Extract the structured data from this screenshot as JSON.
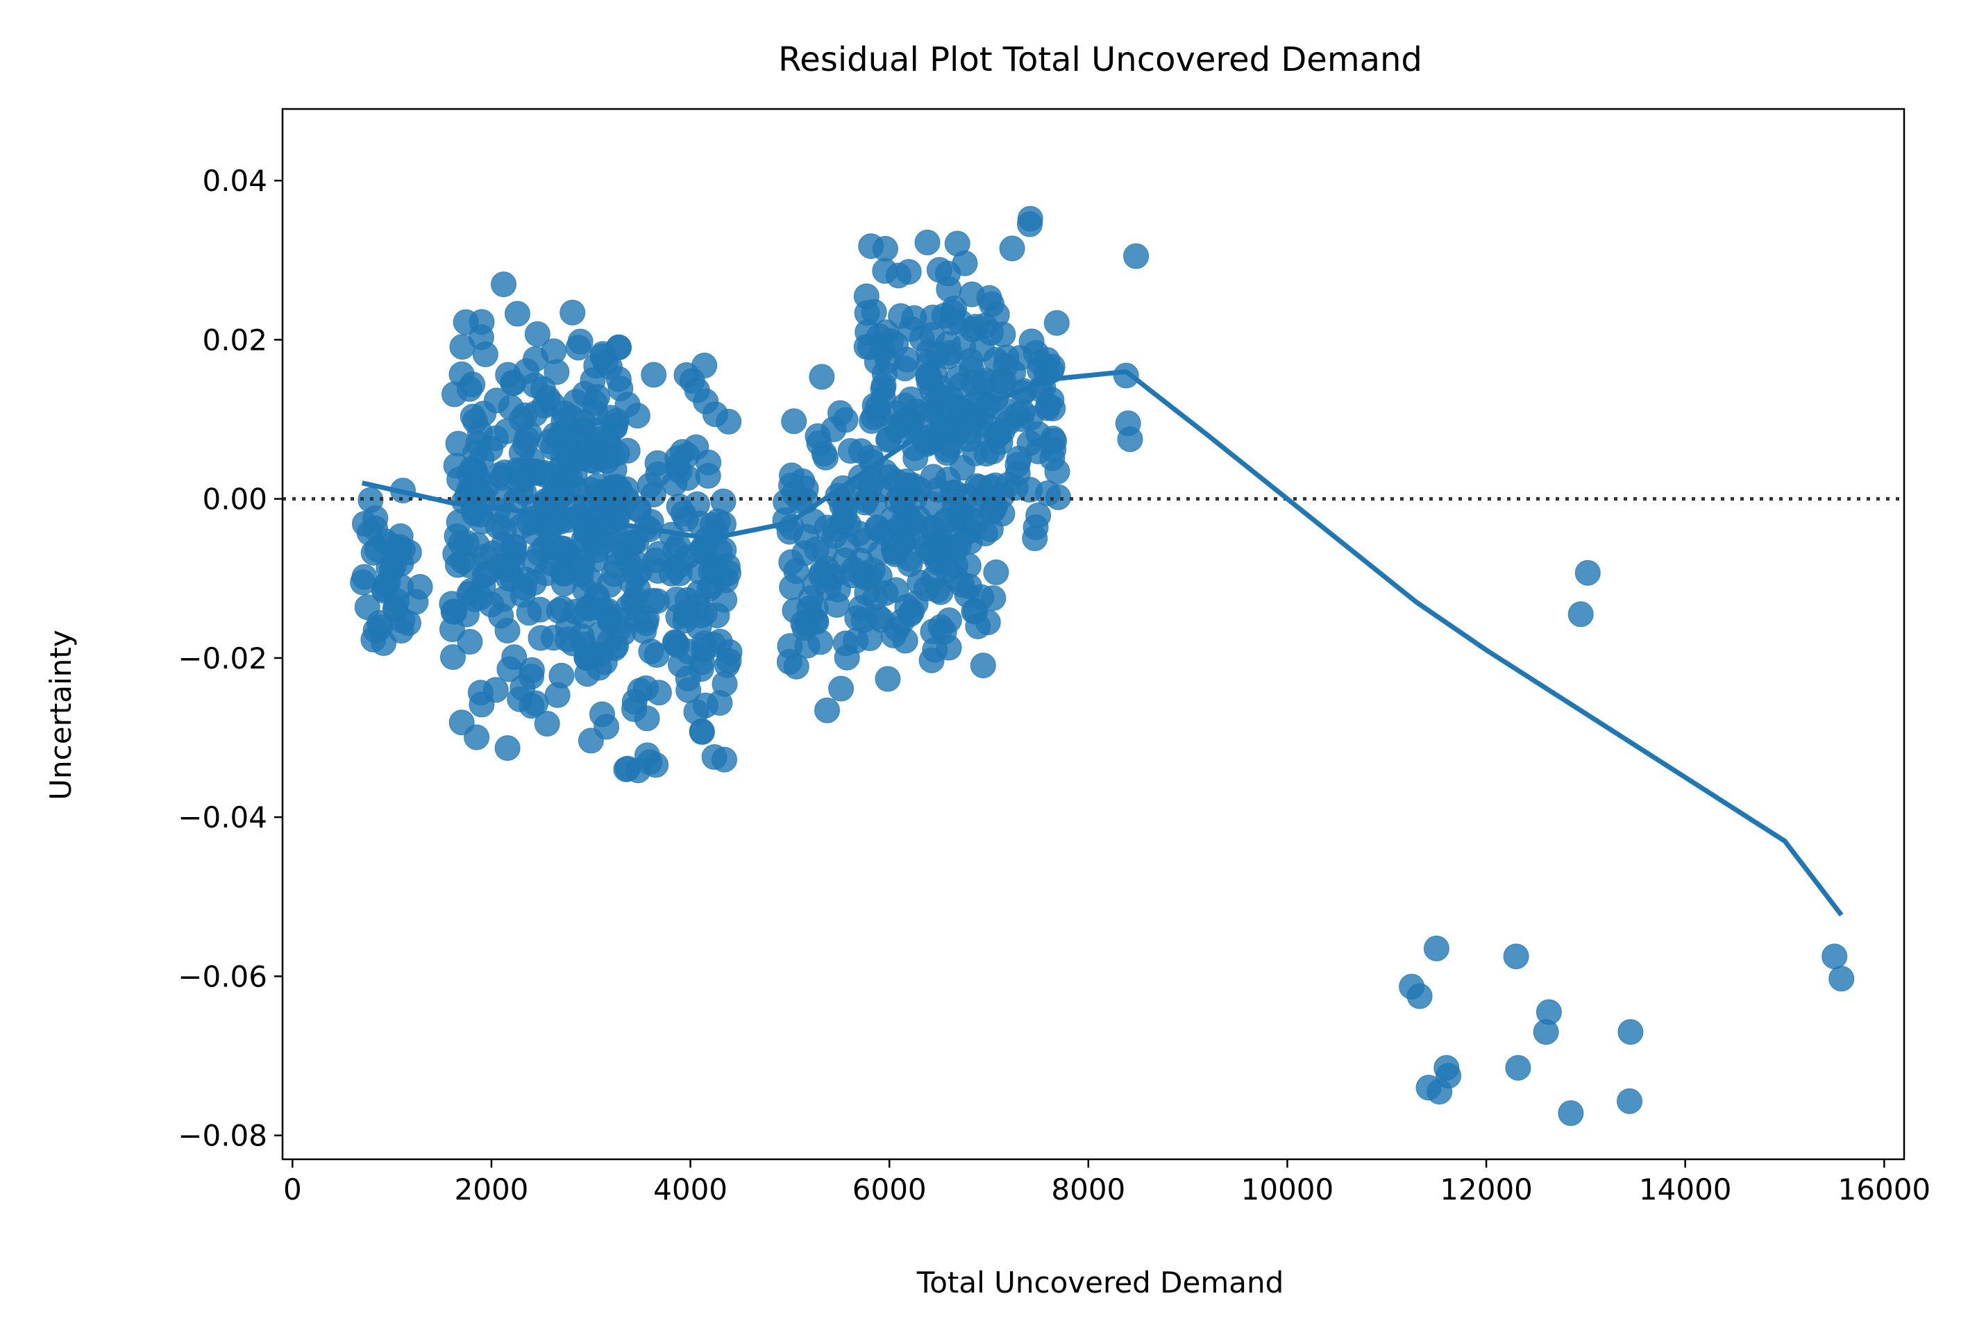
{
  "chart_data": {
    "type": "scatter",
    "title": "Residual Plot Total Uncovered Demand",
    "xlabel": "Total Uncovered Demand",
    "ylabel": "Uncertainty",
    "xlim": [
      -100,
      16200
    ],
    "ylim": [
      -0.083,
      0.049
    ],
    "x_ticks": [
      0,
      2000,
      4000,
      6000,
      8000,
      10000,
      12000,
      14000,
      16000
    ],
    "x_tick_labels": [
      "0",
      "2000",
      "4000",
      "6000",
      "8000",
      "10000",
      "12000",
      "14000",
      "16000"
    ],
    "y_ticks": [
      0.04,
      0.02,
      0.0,
      -0.02,
      -0.04,
      -0.06,
      -0.08
    ],
    "y_tick_labels": [
      "0.04",
      "0.02",
      "0.00",
      "−0.02",
      "−0.04",
      "−0.06",
      "−0.08"
    ],
    "grid": false,
    "reference_line": {
      "y": 0.0,
      "style": "dotted",
      "color": "#333333"
    },
    "colors": {
      "points": "#1f77b4",
      "trend": "#1f77b4"
    },
    "clusters": [
      {
        "x_range": [
          650,
          1300
        ],
        "y_range": [
          -0.026,
          0.005
        ],
        "count": 40
      },
      {
        "x_range": [
          1600,
          2650
        ],
        "y_range": [
          -0.037,
          0.034
        ],
        "count": 170
      },
      {
        "x_range": [
          2650,
          3300
        ],
        "y_range": [
          -0.035,
          0.031
        ],
        "count": 160
      },
      {
        "x_range": [
          3300,
          3700
        ],
        "y_range": [
          -0.043,
          0.023
        ],
        "count": 55
      },
      {
        "x_range": [
          3800,
          4400
        ],
        "y_range": [
          -0.042,
          0.024
        ],
        "count": 90
      },
      {
        "x_range": [
          4950,
          5750
        ],
        "y_range": [
          -0.034,
          0.019
        ],
        "count": 80
      },
      {
        "x_range": [
          5750,
          6550
        ],
        "y_range": [
          -0.039,
          0.042
        ],
        "count": 160
      },
      {
        "x_range": [
          6550,
          7100
        ],
        "y_range": [
          -0.033,
          0.043
        ],
        "count": 110
      },
      {
        "x_range": [
          7100,
          7700
        ],
        "y_range": [
          -0.019,
          0.039
        ],
        "count": 55
      }
    ],
    "points": [
      {
        "x": 8380,
        "y": 0.0155
      },
      {
        "x": 8400,
        "y": 0.0095
      },
      {
        "x": 8420,
        "y": 0.0075
      },
      {
        "x": 8480,
        "y": 0.0305
      },
      {
        "x": 7650,
        "y": 0.0062
      },
      {
        "x": 11250,
        "y": -0.0613
      },
      {
        "x": 11330,
        "y": -0.0625
      },
      {
        "x": 11500,
        "y": -0.0565
      },
      {
        "x": 11420,
        "y": -0.074
      },
      {
        "x": 11530,
        "y": -0.0745
      },
      {
        "x": 11600,
        "y": -0.0715
      },
      {
        "x": 11620,
        "y": -0.0725
      },
      {
        "x": 12300,
        "y": -0.0575
      },
      {
        "x": 12320,
        "y": -0.0715
      },
      {
        "x": 12630,
        "y": -0.0645
      },
      {
        "x": 12600,
        "y": -0.067
      },
      {
        "x": 12850,
        "y": -0.0772
      },
      {
        "x": 12950,
        "y": -0.0145
      },
      {
        "x": 13020,
        "y": -0.0093
      },
      {
        "x": 13450,
        "y": -0.067
      },
      {
        "x": 13440,
        "y": -0.0757
      },
      {
        "x": 15500,
        "y": -0.0575
      },
      {
        "x": 15570,
        "y": -0.0603
      }
    ],
    "trend_line": {
      "x": [
        700,
        1600,
        2600,
        3200,
        3700,
        4200,
        5000,
        5700,
        6300,
        7000,
        7600,
        8380,
        9200,
        10000,
        11300,
        12000,
        13000,
        14000,
        15000,
        15570
      ],
      "y": [
        0.002,
        -0.0005,
        -0.002,
        -0.003,
        -0.004,
        -0.005,
        -0.003,
        0.003,
        0.008,
        0.012,
        0.015,
        0.016,
        0.008,
        0.0,
        -0.013,
        -0.019,
        -0.027,
        -0.035,
        -0.043,
        -0.0523
      ]
    }
  }
}
